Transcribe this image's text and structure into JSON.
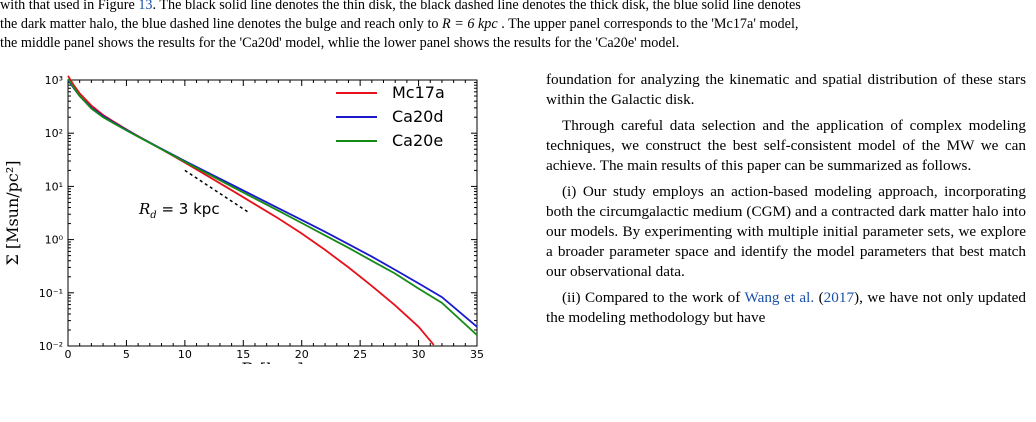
{
  "caption": {
    "line1_pre": "with that used in Figure ",
    "line1_ref": "13",
    "line1_post": ". The black solid line denotes the thin disk, the black dashed line denotes the thick disk, the blue solid line denotes",
    "line2_pre": "the dark matter halo, the blue dashed line denotes the bulge and reach only to ",
    "line2_math": "R = 6 kpc",
    "line2_post": " . The upper panel corresponds to the 'Mc17a' model,",
    "line3": "the middle panel shows the results for the 'Ca20d' model, whlie the lower panel shows the results for the 'Ca20e' model."
  },
  "chart_data": {
    "type": "line",
    "xlabel": "R [kpc]",
    "ylabel": "Σ [Msun/pc²]",
    "xlim": [
      0,
      35
    ],
    "ylim": [
      0.01,
      1000
    ],
    "yscale": "log",
    "xticks": [
      "0",
      "5",
      "10",
      "15",
      "20",
      "25",
      "30",
      "35"
    ],
    "yticks": [
      "10³",
      "10²",
      "10¹",
      "10⁰",
      "10⁻¹",
      "10⁻²"
    ],
    "legend_position": "top-right",
    "series": [
      {
        "name": "Mc17a",
        "color": "#e8101a",
        "x": [
          0,
          0.5,
          1,
          2,
          3,
          4,
          5,
          6,
          8,
          10,
          12,
          14,
          16,
          18,
          20,
          22,
          24,
          26,
          28,
          30,
          31.3
        ],
        "y": [
          1200,
          800,
          560,
          330,
          220,
          160,
          118,
          88,
          50,
          28,
          15.5,
          8.5,
          4.6,
          2.5,
          1.3,
          0.64,
          0.3,
          0.135,
          0.058,
          0.023,
          0.0105
        ]
      },
      {
        "name": "Ca20d",
        "color": "#1a1acc",
        "x": [
          0,
          0.5,
          1,
          2,
          3,
          4,
          5,
          6,
          8,
          10,
          12,
          14,
          16,
          18,
          20,
          22,
          24,
          26,
          28,
          30,
          32,
          35
        ],
        "y": [
          1000,
          700,
          500,
          300,
          210,
          155,
          116,
          87,
          51,
          30,
          18,
          10.8,
          6.5,
          3.9,
          2.35,
          1.4,
          0.82,
          0.48,
          0.27,
          0.15,
          0.083,
          0.023
        ]
      },
      {
        "name": "Ca20e",
        "color": "#158a15",
        "x": [
          0,
          0.5,
          1,
          2,
          3,
          4,
          5,
          6,
          8,
          10,
          12,
          14,
          16,
          18,
          20,
          22,
          24,
          26,
          28,
          30,
          32,
          35
        ],
        "y": [
          1050,
          720,
          500,
          290,
          200,
          150,
          113,
          86,
          50,
          29,
          17,
          10,
          5.9,
          3.5,
          2.05,
          1.2,
          0.7,
          0.4,
          0.23,
          0.12,
          0.065,
          0.016
        ]
      }
    ],
    "reference_line": {
      "label": "R_d = 3 kpc",
      "color": "#000000",
      "x": [
        10,
        15.5
      ],
      "y": [
        20,
        3.2
      ]
    },
    "annotation_text": "= 3 kpc",
    "annotation_symbol": "R",
    "annotation_sub": "d"
  },
  "body": {
    "p1": "foundation for analyzing the kinematic and spatial distribution of these stars within the Galactic disk.",
    "p2": "Through careful data selection and the application of complex modeling techniques, we construct the best self-consistent model of the MW we can achieve. The main results of this paper can be summarized as follows.",
    "p3": "(i) Our study employs an action-based modeling approach, incorporating both the circumgalactic medium (CGM) and a contracted dark matter halo into our models. By experimenting with multiple initial parameter sets, we explore a broader parameter space and identify the model parameters that best match our observational data.",
    "p4_pre": "(ii) Compared to the work of ",
    "p4_ref": "Wang et al.",
    "p4_mid": " (",
    "p4_year": "2017",
    "p4_post": "), we have not only updated the modeling methodology but have"
  }
}
